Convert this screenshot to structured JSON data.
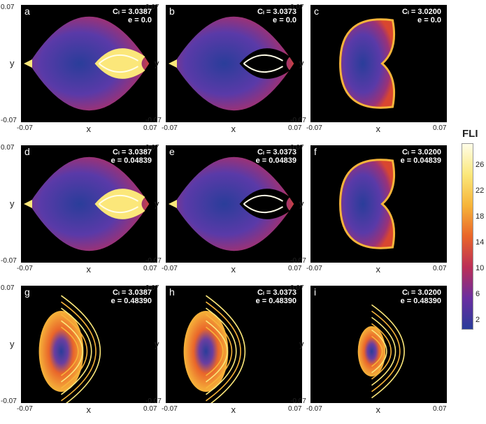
{
  "colorbar": {
    "title": "FLI",
    "ticks": [
      "26",
      "22",
      "18",
      "14",
      "10",
      "6",
      "2"
    ],
    "colors": [
      "#fffde8",
      "#fbe77a",
      "#f6b43a",
      "#e9652a",
      "#bb2f57",
      "#6a2ea0",
      "#2a3d9a"
    ]
  },
  "axes": {
    "x_label": "x",
    "y_label": "y",
    "x_min": "-0.07",
    "x_max": "0.07",
    "y_min": "-0.07",
    "y_max": "0.07"
  },
  "panels": [
    {
      "label": "a",
      "cj": "Cₗ = 3.0387",
      "e": "e = 0.0"
    },
    {
      "label": "b",
      "cj": "Cₗ = 3.0373",
      "e": "e = 0.0"
    },
    {
      "label": "c",
      "cj": "Cₗ = 3.0200",
      "e": "e = 0.0"
    },
    {
      "label": "d",
      "cj": "Cₗ = 3.0387",
      "e": "e = 0.04839"
    },
    {
      "label": "e",
      "cj": "Cₗ = 3.0373",
      "e": "e = 0.04839"
    },
    {
      "label": "f",
      "cj": "Cₗ = 3.0200",
      "e": "e = 0.04839"
    },
    {
      "label": "g",
      "cj": "Cₗ = 3.0387",
      "e": "e = 0.48390"
    },
    {
      "label": "h",
      "cj": "Cₗ = 3.0373",
      "e": "e = 0.48390"
    },
    {
      "label": "i",
      "cj": "Cₗ = 3.0200",
      "e": "e = 0.48390"
    }
  ],
  "chart_data": {
    "type": "heatmap",
    "title": "",
    "xlabel": "x",
    "ylabel": "y",
    "xlim": [
      -0.07,
      0.07
    ],
    "ylim": [
      -0.07,
      0.07
    ],
    "colorbar": {
      "label": "FLI",
      "range": [
        2,
        28
      ],
      "ticks": [
        2,
        6,
        10,
        14,
        18,
        22,
        26
      ]
    },
    "panels": [
      {
        "label": "a",
        "C_J": 3.0387,
        "e": 0.0,
        "region": "lens",
        "chaotic_side": "right"
      },
      {
        "label": "b",
        "C_J": 3.0373,
        "e": 0.0,
        "region": "lens",
        "chaotic_side": "right"
      },
      {
        "label": "c",
        "C_J": 3.02,
        "e": 0.0,
        "region": "D-shape"
      },
      {
        "label": "d",
        "C_J": 3.0387,
        "e": 0.04839,
        "region": "lens",
        "chaotic_side": "right"
      },
      {
        "label": "e",
        "C_J": 3.0373,
        "e": 0.04839,
        "region": "lens",
        "chaotic_side": "right"
      },
      {
        "label": "f",
        "C_J": 3.02,
        "e": 0.04839,
        "region": "D-shape"
      },
      {
        "label": "g",
        "C_J": 3.0387,
        "e": 0.4839,
        "region": "spiral"
      },
      {
        "label": "h",
        "C_J": 3.0373,
        "e": 0.4839,
        "region": "spiral"
      },
      {
        "label": "i",
        "C_J": 3.02,
        "e": 0.4839,
        "region": "spiral-small"
      }
    ]
  }
}
